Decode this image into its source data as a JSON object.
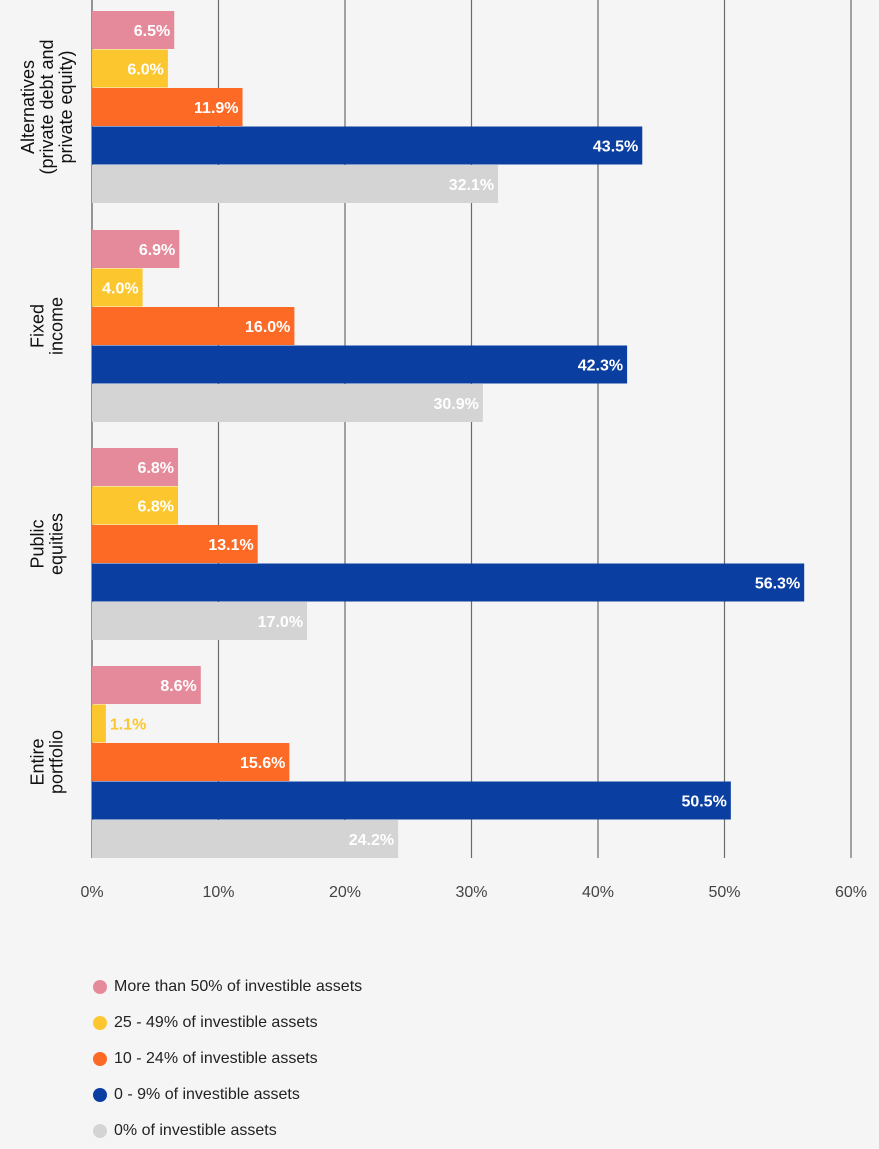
{
  "chart_data": {
    "type": "bar",
    "orientation": "horizontal",
    "categories": [
      [
        "Alternatives",
        "(private debt and",
        "private equity)"
      ],
      [
        "Fixed",
        "income"
      ],
      [
        "Public",
        "equities"
      ],
      [
        "Entire",
        "portfolio"
      ]
    ],
    "series": [
      {
        "name": "More than 50% of investible assets",
        "color": "#e48a9b",
        "values": [
          6.5,
          6.9,
          6.8,
          8.6
        ]
      },
      {
        "name": "25 - 49% of investible assets",
        "color": "#fcc72e",
        "values": [
          6.0,
          4.0,
          6.8,
          1.1
        ]
      },
      {
        "name": "10 - 24% of investible assets",
        "color": "#fd6a26",
        "values": [
          11.9,
          16.0,
          13.1,
          15.6
        ]
      },
      {
        "name": "0 - 9% of investible assets",
        "color": "#0a3ea1",
        "values": [
          43.5,
          42.3,
          56.3,
          50.5
        ]
      },
      {
        "name": "0% of investible assets",
        "color": "#d4d4d4",
        "values": [
          32.1,
          30.9,
          17.0,
          24.2
        ]
      }
    ],
    "xlim": [
      0,
      60
    ],
    "xticks": [
      "0%",
      "10%",
      "20%",
      "30%",
      "40%",
      "50%",
      "60%"
    ],
    "value_suffix": "%",
    "grid": true,
    "legend_position": "bottom-left"
  }
}
